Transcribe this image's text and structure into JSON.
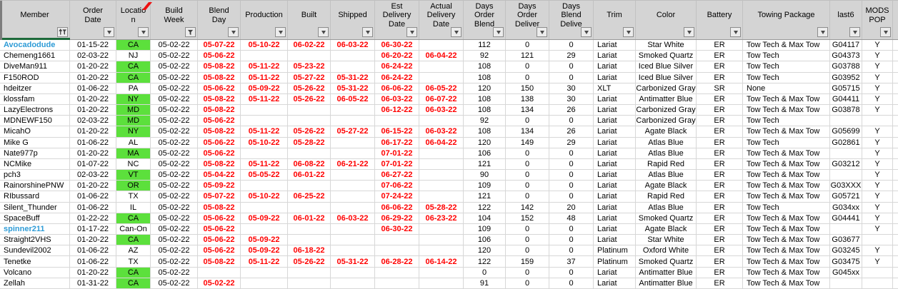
{
  "colors": {
    "header_bg": "#d4d4d4",
    "grid_line": "#d7d7d7",
    "green_cell": "#5ce03c",
    "red_text": "#ff0000",
    "link_blue": "#2e9bd6",
    "selection_green": "#1d6a3a",
    "flag_red": "#ee1111"
  },
  "header": {
    "columns": [
      {
        "key": "member",
        "label": "Member",
        "filter": "sort-filter"
      },
      {
        "key": "order_date",
        "label": "Order Date",
        "filter": "dropdown"
      },
      {
        "key": "location",
        "label": "Location",
        "filter": "dropdown"
      },
      {
        "key": "build_week",
        "label": "Build Week",
        "filter": "funnel"
      },
      {
        "key": "blend_day",
        "label": "Blend Day",
        "filter": "dropdown"
      },
      {
        "key": "production",
        "label": "Production",
        "filter": "dropdown"
      },
      {
        "key": "built",
        "label": "Built",
        "filter": "dropdown"
      },
      {
        "key": "shipped",
        "label": "Shipped",
        "filter": "dropdown"
      },
      {
        "key": "est_delivery",
        "label": "Est Delivery Date",
        "filter": "dropdown"
      },
      {
        "key": "actual_delivery",
        "label": "Actual Delivery Date",
        "filter": "dropdown"
      },
      {
        "key": "days_order_blend",
        "label": "Days Order Blend",
        "filter": "dropdown"
      },
      {
        "key": "days_order_deliver",
        "label": "Days Order Deliver",
        "filter": "dropdown"
      },
      {
        "key": "days_blend_deliver",
        "label": "Days Blend Delive",
        "filter": "dropdown"
      },
      {
        "key": "trim",
        "label": "Trim",
        "filter": "dropdown"
      },
      {
        "key": "color",
        "label": "Color",
        "filter": "dropdown"
      },
      {
        "key": "battery",
        "label": "Battery",
        "filter": "dropdown"
      },
      {
        "key": "towing",
        "label": "Towing Package",
        "filter": "dropdown"
      },
      {
        "key": "last6",
        "label": "last6",
        "filter": "dropdown"
      },
      {
        "key": "mods",
        "label": "MODS POP",
        "filter": "dropdown"
      }
    ]
  },
  "rows": [
    {
      "member": "Avocadodude",
      "link": true,
      "order_date": "01-15-22",
      "location": "CA",
      "loc_green": true,
      "build_week": "05-02-22",
      "blend_day": "05-07-22",
      "production": "05-10-22",
      "built": "06-02-22",
      "shipped": "06-03-22",
      "est_delivery": "06-30-22",
      "actual_delivery": "",
      "days_order_blend": "112",
      "days_order_deliver": "0",
      "days_blend_deliver": "0",
      "trim": "Lariat",
      "color": "Star White",
      "battery": "ER",
      "towing": "Tow Tech & Max Tow",
      "last6": "G04117",
      "mods": "Y"
    },
    {
      "member": "Chemeng1661",
      "link": false,
      "order_date": "02-03-22",
      "location": "NJ",
      "loc_green": false,
      "build_week": "05-02-22",
      "blend_day": "05-06-22",
      "production": "",
      "built": "",
      "shipped": "",
      "est_delivery": "06-20-22",
      "actual_delivery": "06-04-22",
      "days_order_blend": "92",
      "days_order_deliver": "121",
      "days_blend_deliver": "29",
      "trim": "Lariat",
      "color": "Smoked Quartz",
      "battery": "ER",
      "towing": "Tow Tech",
      "last6": "G04373",
      "mods": "Y"
    },
    {
      "member": "DiveMan911",
      "link": false,
      "order_date": "01-20-22",
      "location": "CA",
      "loc_green": true,
      "build_week": "05-02-22",
      "blend_day": "05-08-22",
      "production": "05-11-22",
      "built": "05-23-22",
      "shipped": "",
      "est_delivery": "06-24-22",
      "actual_delivery": "",
      "days_order_blend": "108",
      "days_order_deliver": "0",
      "days_blend_deliver": "0",
      "trim": "Lariat",
      "color": "Iced Blue Silver",
      "battery": "ER",
      "towing": "Tow Tech",
      "last6": "G03788",
      "mods": "Y"
    },
    {
      "member": "F150ROD",
      "link": false,
      "order_date": "01-20-22",
      "location": "CA",
      "loc_green": true,
      "build_week": "05-02-22",
      "blend_day": "05-08-22",
      "production": "05-11-22",
      "built": "05-27-22",
      "shipped": "05-31-22",
      "est_delivery": "06-24-22",
      "actual_delivery": "",
      "days_order_blend": "108",
      "days_order_deliver": "0",
      "days_blend_deliver": "0",
      "trim": "Lariat",
      "color": "Iced Blue Silver",
      "battery": "ER",
      "towing": "Tow Tech",
      "last6": "G03952",
      "mods": "Y"
    },
    {
      "member": "hdeitzer",
      "link": false,
      "order_date": "01-06-22",
      "location": "PA",
      "loc_green": false,
      "build_week": "05-02-22",
      "blend_day": "05-06-22",
      "production": "05-09-22",
      "built": "05-26-22",
      "shipped": "05-31-22",
      "est_delivery": "06-06-22",
      "actual_delivery": "06-05-22",
      "days_order_blend": "120",
      "days_order_deliver": "150",
      "days_blend_deliver": "30",
      "trim": "XLT",
      "color": "Carbonized Gray",
      "battery": "SR",
      "towing": "None",
      "last6": "G05715",
      "mods": "Y"
    },
    {
      "member": "klossfam",
      "link": false,
      "order_date": "01-20-22",
      "location": "NY",
      "loc_green": true,
      "build_week": "05-02-22",
      "blend_day": "05-08-22",
      "production": "05-11-22",
      "built": "05-26-22",
      "shipped": "06-05-22",
      "est_delivery": "06-03-22",
      "actual_delivery": "06-07-22",
      "days_order_blend": "108",
      "days_order_deliver": "138",
      "days_blend_deliver": "30",
      "trim": "Lariat",
      "color": "Antimatter Blue",
      "battery": "ER",
      "towing": "Tow Tech & Max Tow",
      "last6": "G04411",
      "mods": "Y"
    },
    {
      "member": "LazyElectrons",
      "link": false,
      "order_date": "01-20-22",
      "location": "MD",
      "loc_green": true,
      "build_week": "05-02-22",
      "blend_day": "05-08-22",
      "production": "",
      "built": "",
      "shipped": "",
      "est_delivery": "06-12-22",
      "actual_delivery": "06-03-22",
      "days_order_blend": "108",
      "days_order_deliver": "134",
      "days_blend_deliver": "26",
      "trim": "Lariat",
      "color": "Carbonized Gray",
      "battery": "ER",
      "towing": "Tow Tech & Max Tow",
      "last6": "G03878",
      "mods": "Y"
    },
    {
      "member": "MDNEWF150",
      "link": false,
      "order_date": "02-03-22",
      "location": "MD",
      "loc_green": true,
      "build_week": "05-02-22",
      "blend_day": "05-06-22",
      "production": "",
      "built": "",
      "shipped": "",
      "est_delivery": "",
      "actual_delivery": "",
      "days_order_blend": "92",
      "days_order_deliver": "0",
      "days_blend_deliver": "0",
      "trim": "Lariat",
      "color": "Carbonized Gray",
      "battery": "ER",
      "towing": "Tow Tech",
      "last6": "",
      "mods": ""
    },
    {
      "member": "MicahO",
      "link": false,
      "order_date": "01-20-22",
      "location": "NY",
      "loc_green": true,
      "build_week": "05-02-22",
      "blend_day": "05-08-22",
      "production": "05-11-22",
      "built": "05-26-22",
      "shipped": "05-27-22",
      "est_delivery": "06-15-22",
      "actual_delivery": "06-03-22",
      "days_order_blend": "108",
      "days_order_deliver": "134",
      "days_blend_deliver": "26",
      "trim": "Lariat",
      "color": "Agate Black",
      "battery": "ER",
      "towing": "Tow Tech & Max Tow",
      "last6": "G05699",
      "mods": "Y"
    },
    {
      "member": "Mike G",
      "link": false,
      "order_date": "01-06-22",
      "location": "AL",
      "loc_green": false,
      "build_week": "05-02-22",
      "blend_day": "05-06-22",
      "production": "05-10-22",
      "built": "05-28-22",
      "shipped": "",
      "est_delivery": "06-17-22",
      "actual_delivery": "06-04-22",
      "days_order_blend": "120",
      "days_order_deliver": "149",
      "days_blend_deliver": "29",
      "trim": "Lariat",
      "color": "Atlas Blue",
      "battery": "ER",
      "towing": "Tow Tech",
      "last6": "G02861",
      "mods": "Y"
    },
    {
      "member": "Nate977p",
      "link": false,
      "order_date": "01-20-22",
      "location": "MA",
      "loc_green": true,
      "build_week": "05-02-22",
      "blend_day": "05-06-22",
      "production": "",
      "built": "",
      "shipped": "",
      "est_delivery": "07-01-22",
      "actual_delivery": "",
      "days_order_blend": "106",
      "days_order_deliver": "0",
      "days_blend_deliver": "0",
      "trim": "Lariat",
      "color": "Atlas Blue",
      "battery": "ER",
      "towing": "Tow Tech & Max Tow",
      "last6": "",
      "mods": "Y"
    },
    {
      "member": "NCMike",
      "link": false,
      "order_date": "01-07-22",
      "location": "NC",
      "loc_green": false,
      "build_week": "05-02-22",
      "blend_day": "05-08-22",
      "production": "05-11-22",
      "built": "06-08-22",
      "shipped": "06-21-22",
      "est_delivery": "07-01-22",
      "actual_delivery": "",
      "days_order_blend": "121",
      "days_order_deliver": "0",
      "days_blend_deliver": "0",
      "trim": "Lariat",
      "color": "Rapid Red",
      "battery": "ER",
      "towing": "Tow Tech & Max Tow",
      "last6": "G03212",
      "mods": "Y"
    },
    {
      "member": "pch3",
      "link": false,
      "order_date": "02-03-22",
      "location": "VT",
      "loc_green": true,
      "build_week": "05-02-22",
      "blend_day": "05-04-22",
      "production": "05-05-22",
      "built": "06-01-22",
      "shipped": "",
      "est_delivery": "06-27-22",
      "actual_delivery": "",
      "days_order_blend": "90",
      "days_order_deliver": "0",
      "days_blend_deliver": "0",
      "trim": "Lariat",
      "color": "Atlas Blue",
      "battery": "ER",
      "towing": "Tow Tech & Max Tow",
      "last6": "",
      "mods": "Y"
    },
    {
      "member": "RainorshinePNW",
      "link": false,
      "order_date": "01-20-22",
      "location": "OR",
      "loc_green": true,
      "build_week": "05-02-22",
      "blend_day": "05-09-22",
      "production": "",
      "built": "",
      "shipped": "",
      "est_delivery": "07-06-22",
      "actual_delivery": "",
      "days_order_blend": "109",
      "days_order_deliver": "0",
      "days_blend_deliver": "0",
      "trim": "Lariat",
      "color": "Agate Black",
      "battery": "ER",
      "towing": "Tow Tech & Max Tow",
      "last6": "G03XXX",
      "mods": "Y"
    },
    {
      "member": "RIbussard",
      "link": false,
      "order_date": "01-06-22",
      "location": "TX",
      "loc_green": false,
      "build_week": "05-02-22",
      "blend_day": "05-07-22",
      "production": "05-10-22",
      "built": "06-25-22",
      "shipped": "",
      "est_delivery": "07-24-22",
      "actual_delivery": "",
      "days_order_blend": "121",
      "days_order_deliver": "0",
      "days_blend_deliver": "0",
      "trim": "Lariat",
      "color": "Rapid Red",
      "battery": "ER",
      "towing": "Tow Tech & Max Tow",
      "last6": "G05721",
      "mods": "Y"
    },
    {
      "member": "Silent_Thunder",
      "link": false,
      "order_date": "01-06-22",
      "location": "IL",
      "loc_green": false,
      "build_week": "05-02-22",
      "blend_day": "05-08-22",
      "production": "",
      "built": "",
      "shipped": "",
      "est_delivery": "06-06-22",
      "actual_delivery": "05-28-22",
      "days_order_blend": "122",
      "days_order_deliver": "142",
      "days_blend_deliver": "20",
      "trim": "Lariat",
      "color": "Atlas Blue",
      "battery": "ER",
      "towing": "Tow Tech",
      "last6": "G034xx",
      "mods": "Y"
    },
    {
      "member": "SpaceBuff",
      "link": false,
      "order_date": "01-22-22",
      "location": "CA",
      "loc_green": true,
      "build_week": "05-02-22",
      "blend_day": "05-06-22",
      "production": "05-09-22",
      "built": "06-01-22",
      "shipped": "06-03-22",
      "est_delivery": "06-29-22",
      "actual_delivery": "06-23-22",
      "days_order_blend": "104",
      "days_order_deliver": "152",
      "days_blend_deliver": "48",
      "trim": "Lariat",
      "color": "Smoked Quartz",
      "battery": "ER",
      "towing": "Tow Tech & Max Tow",
      "last6": "G04441",
      "mods": "Y"
    },
    {
      "member": "spinner211",
      "link": true,
      "order_date": "01-17-22",
      "location": "Can-On",
      "loc_green": false,
      "build_week": "05-02-22",
      "blend_day": "05-06-22",
      "production": "",
      "built": "",
      "shipped": "",
      "est_delivery": "06-30-22",
      "actual_delivery": "",
      "days_order_blend": "109",
      "days_order_deliver": "0",
      "days_blend_deliver": "0",
      "trim": "Lariat",
      "color": "Agate Black",
      "battery": "ER",
      "towing": "Tow Tech & Max Tow",
      "last6": "",
      "mods": "Y"
    },
    {
      "member": "Straight2VHS",
      "link": false,
      "order_date": "01-20-22",
      "location": "CA",
      "loc_green": true,
      "build_week": "05-02-22",
      "blend_day": "05-06-22",
      "production": "05-09-22",
      "built": "",
      "shipped": "",
      "est_delivery": "",
      "actual_delivery": "",
      "days_order_blend": "106",
      "days_order_deliver": "0",
      "days_blend_deliver": "0",
      "trim": "Lariat",
      "color": "Star White",
      "battery": "ER",
      "towing": "Tow Tech & Max Tow",
      "last6": "G03677",
      "mods": ""
    },
    {
      "member": "Sundevil2002",
      "link": false,
      "order_date": "01-06-22",
      "location": "AZ",
      "loc_green": false,
      "build_week": "05-02-22",
      "blend_day": "05-06-22",
      "production": "05-09-22",
      "built": "06-18-22",
      "shipped": "",
      "est_delivery": "",
      "actual_delivery": "",
      "days_order_blend": "120",
      "days_order_deliver": "0",
      "days_blend_deliver": "0",
      "trim": "Platinum",
      "color": "Oxford White",
      "battery": "ER",
      "towing": "Tow Tech & Max Tow",
      "last6": "G03245",
      "mods": "Y"
    },
    {
      "member": "Tenetke",
      "link": false,
      "order_date": "01-06-22",
      "location": "TX",
      "loc_green": false,
      "build_week": "05-02-22",
      "blend_day": "05-08-22",
      "production": "05-11-22",
      "built": "05-26-22",
      "shipped": "05-31-22",
      "est_delivery": "06-28-22",
      "actual_delivery": "06-14-22",
      "days_order_blend": "122",
      "days_order_deliver": "159",
      "days_blend_deliver": "37",
      "trim": "Platinum",
      "color": "Smoked Quartz",
      "battery": "ER",
      "towing": "Tow Tech & Max Tow",
      "last6": "G03475",
      "mods": "Y"
    },
    {
      "member": "Volcano",
      "link": false,
      "order_date": "01-20-22",
      "location": "CA",
      "loc_green": true,
      "build_week": "05-02-22",
      "blend_day": "",
      "production": "",
      "built": "",
      "shipped": "",
      "est_delivery": "",
      "actual_delivery": "",
      "days_order_blend": "0",
      "days_order_deliver": "0",
      "days_blend_deliver": "0",
      "trim": "Lariat",
      "color": "Antimatter Blue",
      "battery": "ER",
      "towing": "Tow Tech & Max Tow",
      "last6": "G045xx",
      "mods": ""
    },
    {
      "member": "Zellah",
      "link": false,
      "order_date": "01-31-22",
      "location": "CA",
      "loc_green": true,
      "build_week": "05-02-22",
      "blend_day": "05-02-22",
      "production": "",
      "built": "",
      "shipped": "",
      "est_delivery": "",
      "actual_delivery": "",
      "days_order_blend": "91",
      "days_order_deliver": "0",
      "days_blend_deliver": "0",
      "trim": "Lariat",
      "color": "Antimatter Blue",
      "battery": "ER",
      "towing": "Tow Tech & Max Tow",
      "last6": "",
      "mods": ""
    }
  ]
}
